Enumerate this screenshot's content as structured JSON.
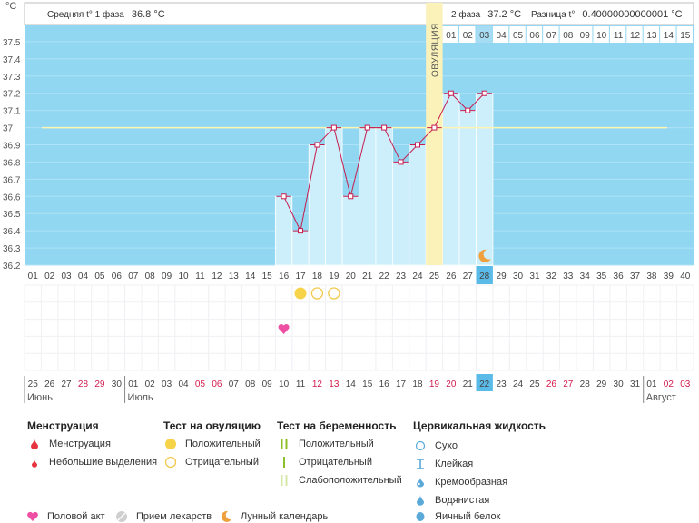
{
  "header": {
    "phase1_label": "Средняя t° 1 фаза",
    "phase1_value": "36.8 °C",
    "phase2_label": "2 фаза",
    "phase2_value": "37.2 °C",
    "diff_label": "Разница t°",
    "diff_value": "0.40000000000001 °C"
  },
  "chart_data": {
    "type": "bar",
    "ylabel": "°C",
    "ylim": [
      36.2,
      37.6
    ],
    "y_ticks": [
      36.2,
      36.3,
      36.4,
      36.5,
      36.6,
      36.7,
      36.8,
      36.9,
      37,
      37.1,
      37.2,
      37.3,
      37.4,
      37.5
    ],
    "y_tick_labels": [
      "36.2",
      "36.3",
      "36.4",
      "36.5",
      "36.6",
      "36.7",
      "36.8",
      "36.9",
      "37",
      "37.1",
      "37.2",
      "37.3",
      "37.4",
      "37.5"
    ],
    "cycle_days": [
      "01",
      "02",
      "03",
      "04",
      "05",
      "06",
      "07",
      "08",
      "09",
      "10",
      "11",
      "12",
      "13",
      "14",
      "15",
      "16",
      "17",
      "18",
      "19",
      "20",
      "21",
      "22",
      "23",
      "24",
      "25",
      "26",
      "27",
      "28",
      "29",
      "30",
      "31",
      "32",
      "33",
      "34",
      "35",
      "36",
      "37",
      "38",
      "39",
      "40"
    ],
    "temperatures": [
      null,
      null,
      null,
      null,
      null,
      null,
      null,
      null,
      null,
      null,
      null,
      null,
      null,
      null,
      null,
      36.6,
      36.4,
      36.9,
      37.0,
      36.6,
      37.0,
      37.0,
      36.8,
      36.9,
      37.0,
      37.2,
      37.1,
      37.2,
      null,
      null,
      null,
      null,
      null,
      null,
      null,
      null,
      null,
      null,
      null,
      null
    ],
    "coverline": 37.0,
    "ovulation_day": 25,
    "ovulation_label": "ОВУЛЯЦИЯ",
    "today_day": 28,
    "post_ovulation_days": [
      "01",
      "02",
      "03",
      "04",
      "05",
      "06",
      "07",
      "08",
      "09",
      "10",
      "11",
      "12",
      "13",
      "14",
      "15"
    ],
    "ovulation_tests": [
      {
        "day": 17,
        "result": "positive"
      },
      {
        "day": 18,
        "result": "negative"
      },
      {
        "day": 19,
        "result": "negative"
      }
    ],
    "intercourse_days": [
      16
    ],
    "moon_days": [
      28
    ],
    "calendar_dates": [
      "25",
      "26",
      "27",
      "28",
      "29",
      "30",
      "01",
      "02",
      "03",
      "04",
      "05",
      "06",
      "07",
      "08",
      "09",
      "10",
      "11",
      "12",
      "13",
      "14",
      "15",
      "16",
      "17",
      "18",
      "19",
      "20",
      "21",
      "22",
      "23",
      "24",
      "25",
      "26",
      "27",
      "28",
      "29",
      "30",
      "31",
      "01",
      "02",
      "03"
    ],
    "weekend_days": [
      4,
      5,
      11,
      12,
      18,
      19,
      25,
      26,
      32,
      33,
      39,
      40
    ],
    "months": [
      {
        "name": "Июнь",
        "start_day": 1
      },
      {
        "name": "Июль",
        "start_day": 7
      },
      {
        "name": "Август",
        "start_day": 38
      }
    ],
    "colors": {
      "plot_bg": "#92d7f2",
      "bar_fill": "#cdeefb",
      "line": "#c71c4e",
      "ovulation": "#fbf2ba",
      "today": "#5bbbe8",
      "weekend": "#d21a4d",
      "coverline": "#fdf5b0"
    }
  },
  "legend": {
    "menstruation": {
      "title": "Менструация",
      "items": [
        "Менструация",
        "Небольшие выделения"
      ]
    },
    "ovulation_test": {
      "title": "Тест на овуляцию",
      "items": [
        "Положительный",
        "Отрицательный"
      ]
    },
    "pregnancy_test": {
      "title": "Тест на беременность",
      "items": [
        "Положительный",
        "Отрицательный",
        "Слабоположительный"
      ]
    },
    "cervical": {
      "title": "Цервикальная жидкость",
      "items": [
        "Сухо",
        "Клейкая",
        "Кремообразная",
        "Водянистая",
        "Яичный белок"
      ]
    },
    "bottom": [
      "Половой акт",
      "Прием лекарств",
      "Лунный календарь"
    ]
  }
}
